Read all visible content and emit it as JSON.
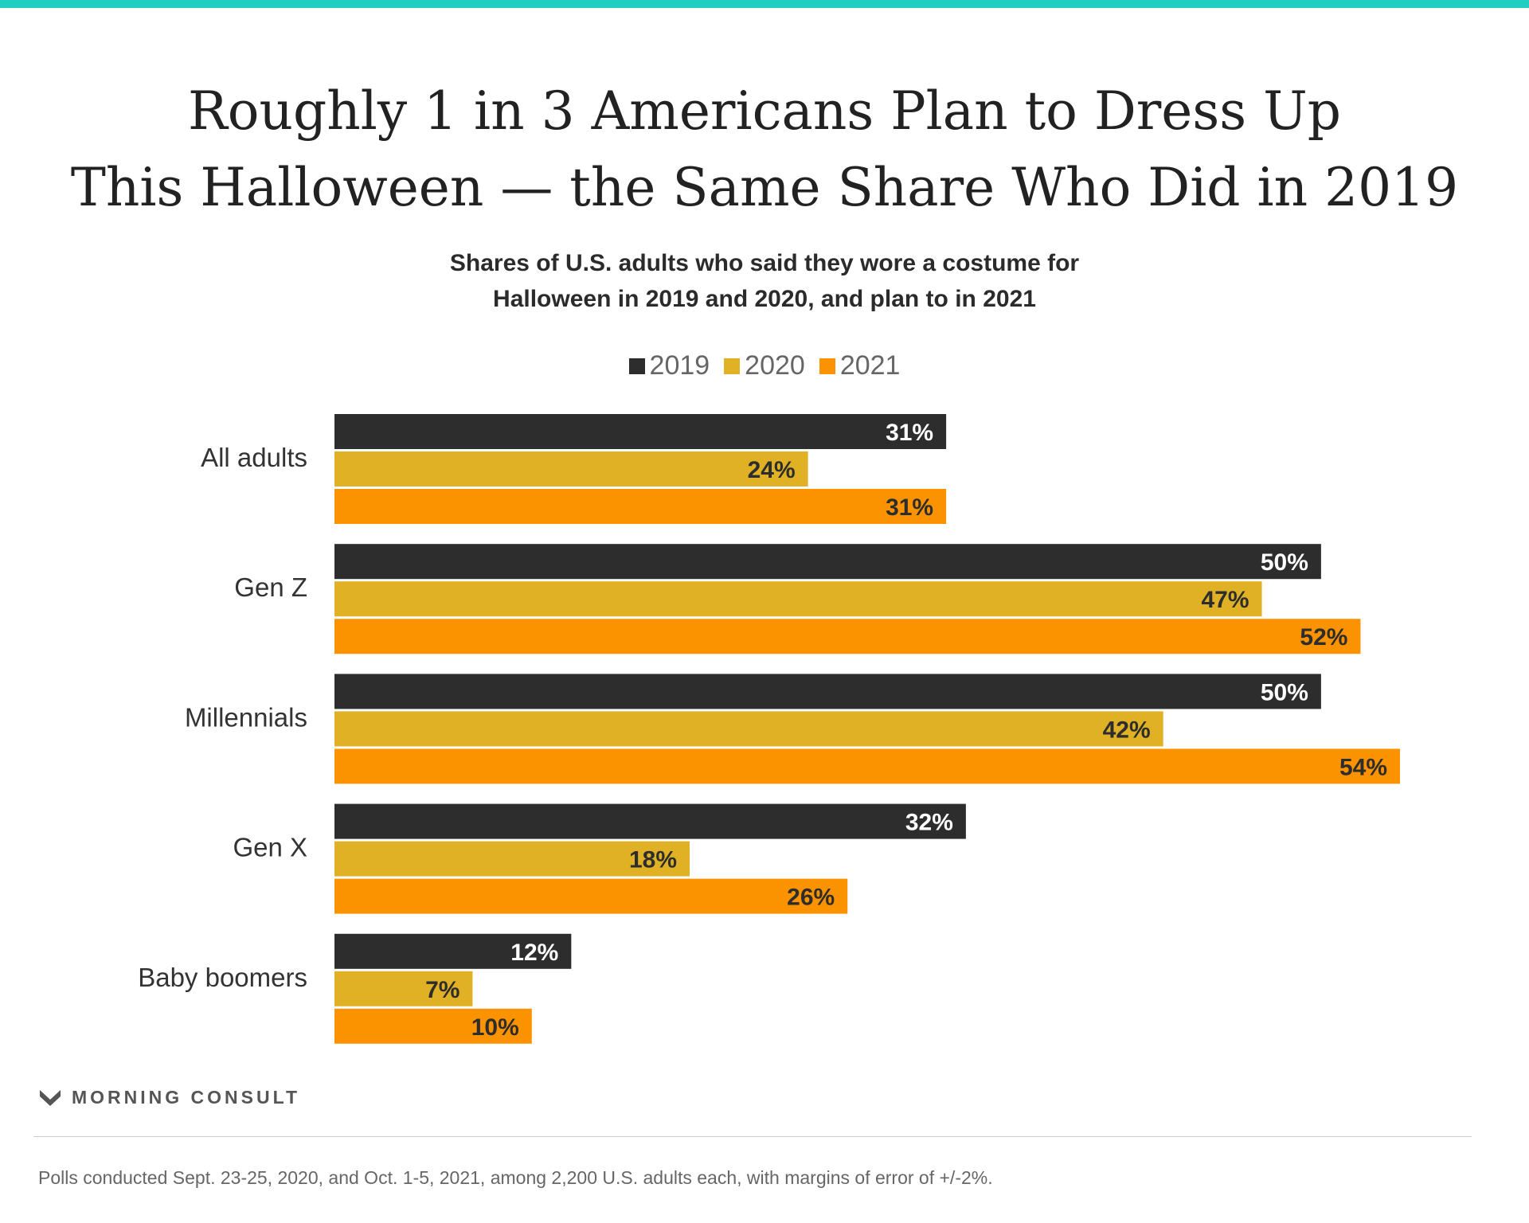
{
  "colors": {
    "accent_bar": "#1fcfc1",
    "series_2019": "#2d2d2d",
    "series_2020": "#e1b125",
    "series_2021": "#fb9200",
    "label_on_dark": "#ffffff",
    "label_on_light": "#2d2d2d"
  },
  "title": {
    "line1": "Roughly 1 in 3 Americans Plan to Dress Up",
    "line2": "This Halloween — the Same Share Who Did in 2019"
  },
  "subtitle": {
    "line1": "Shares of U.S. adults who said they wore a costume for",
    "line2": "Halloween in 2019 and 2020, and plan to in 2021"
  },
  "chart_data": {
    "type": "bar",
    "orientation": "horizontal",
    "categories": [
      "All adults",
      "Gen Z",
      "Millennials",
      "Gen X",
      "Baby boomers"
    ],
    "series": [
      {
        "name": "2019",
        "values": [
          31,
          50,
          50,
          32,
          12
        ],
        "labels": [
          "31%",
          "50%",
          "50%",
          "32%",
          "12%"
        ]
      },
      {
        "name": "2020",
        "values": [
          24,
          47,
          42,
          18,
          7
        ],
        "labels": [
          "24%",
          "47%",
          "42%",
          "18%",
          "7%"
        ]
      },
      {
        "name": "2021",
        "values": [
          31,
          52,
          54,
          26,
          10
        ],
        "labels": [
          "31%",
          "52%",
          "54%",
          "26%",
          "10%"
        ]
      }
    ],
    "xlim": [
      0,
      54
    ],
    "grid": false,
    "legend_position": "top-center"
  },
  "brand": {
    "logo_text": "MORNING CONSULT",
    "logo_icon": "morning-consult-chevron-icon"
  },
  "footnote": "Polls conducted Sept. 23-25, 2020, and Oct. 1-5, 2021, among 2,200 U.S. adults each, with margins of error of +/-2%."
}
